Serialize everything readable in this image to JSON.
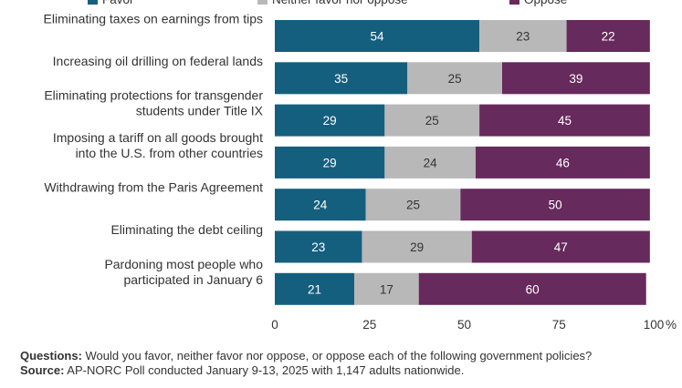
{
  "chart_data": {
    "type": "bar",
    "orientation": "horizontal",
    "stacked": true,
    "categories": [
      [
        "Eliminating taxes on earnings from tips"
      ],
      [
        "Increasing oil drilling on federal lands"
      ],
      [
        "Eliminating protections for transgender",
        "students under Title IX"
      ],
      [
        "Imposing a tariff on all goods brought",
        "into the U.S. from other countries"
      ],
      [
        "Withdrawing from the Paris Agreement"
      ],
      [
        "Eliminating the debt ceiling"
      ],
      [
        "Pardoning most people who",
        "participated in January 6"
      ]
    ],
    "series": [
      {
        "name": "Favor",
        "color": "#155f7e",
        "label_color": "#ffffff",
        "values": [
          54,
          35,
          29,
          29,
          24,
          23,
          21
        ]
      },
      {
        "name": "Neither favor nor oppose",
        "color": "#b8b8b8",
        "label_color": "#333333",
        "values": [
          23,
          25,
          25,
          24,
          25,
          29,
          17
        ]
      },
      {
        "name": "Oppose",
        "color": "#672a5d",
        "label_color": "#ffffff",
        "values": [
          22,
          39,
          45,
          46,
          50,
          47,
          60
        ]
      }
    ],
    "xticks": [
      "0",
      "25",
      "50",
      "75",
      "100"
    ],
    "xtick_values": [
      0,
      25,
      50,
      75,
      100
    ],
    "xunit": "%",
    "xlim": [
      0,
      100
    ],
    "legend": "top",
    "grid": false
  },
  "footer": {
    "questions_label": "Questions:",
    "questions_text": " Would you favor, neither favor nor oppose, or oppose each of the following government policies?",
    "source_label": "Source:",
    "source_text": " AP-NORC Poll conducted January 9-13, 2025 with 1,147 adults nationwide."
  }
}
